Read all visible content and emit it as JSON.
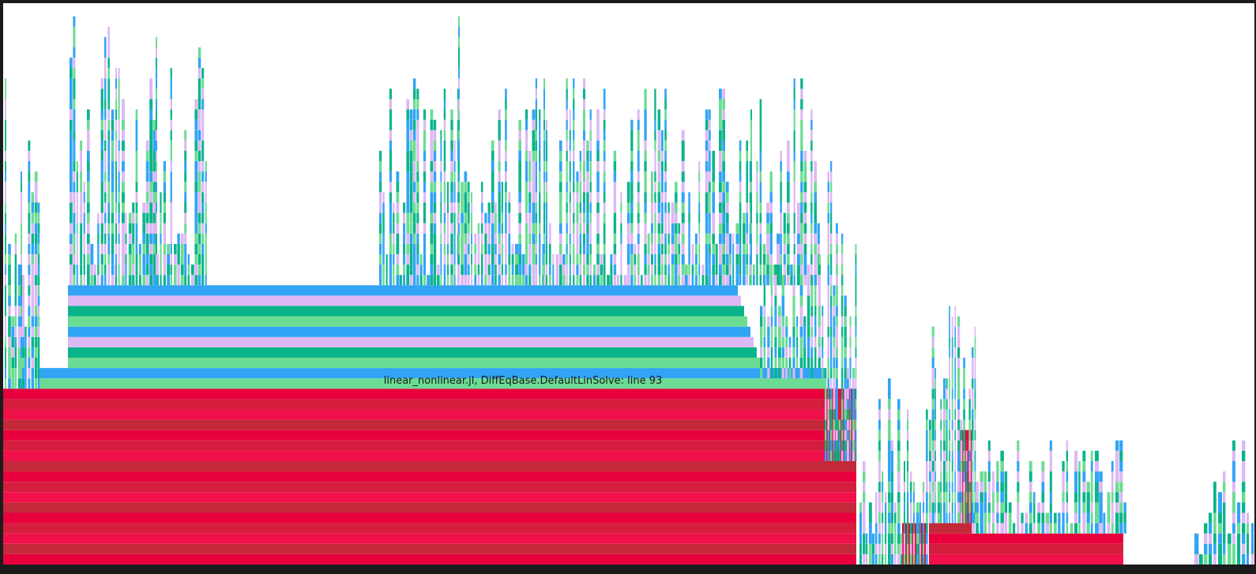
{
  "window": {
    "background": "#1b1b1b",
    "canvas_background": "#ffffff"
  },
  "tooltip": {
    "text": "linear_nonlinear.jl, DiffEqBase.DefaultLinSolve: line 93"
  },
  "chart_data": {
    "type": "flame",
    "palette": {
      "base": [
        "#e8003d",
        "#c4293a",
        "#f0114a",
        "#d51d3e"
      ],
      "stack": [
        "#31a4f5",
        "#6bdc93",
        "#0ab48a",
        "#dcb8f4"
      ]
    },
    "root_depth": 17,
    "main_frame": {
      "depth": 18,
      "label": "linear_nonlinear.jl, DiffEqBase.DefaultLinSolve: line 93"
    }
  }
}
